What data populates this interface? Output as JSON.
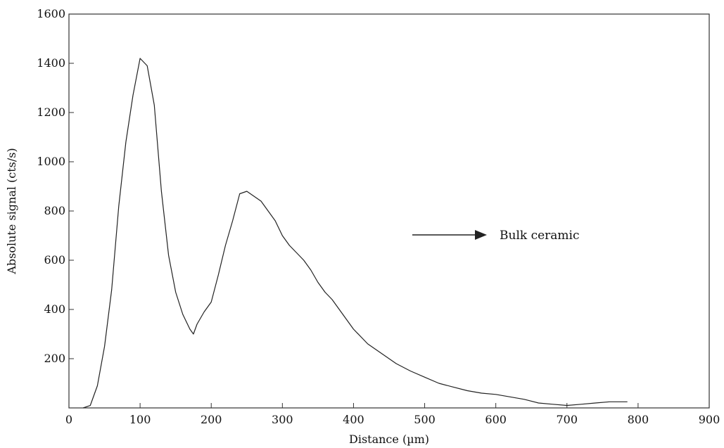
{
  "chart_data": {
    "type": "line",
    "title": "",
    "xlabel": "Distance (µm)",
    "ylabel": "Absolute signal (cts/s)",
    "xlim": [
      0,
      900
    ],
    "ylim": [
      0,
      1600
    ],
    "xticks": [
      "0",
      "100",
      "200",
      "300",
      "400",
      "500",
      "600",
      "700",
      "800",
      "900"
    ],
    "yticks": [
      "200",
      "400",
      "600",
      "800",
      "1000",
      "1200",
      "1400",
      "1600"
    ],
    "grid": false,
    "legend": "none",
    "line_color": "#222222",
    "series": [
      {
        "x": [
          20,
          30,
          40,
          50,
          60,
          70,
          80,
          90,
          100,
          110,
          120,
          130,
          140,
          150,
          160,
          170,
          175,
          180,
          190,
          200,
          210,
          220,
          230,
          240,
          250,
          260,
          270,
          280,
          290,
          300,
          310,
          320,
          330,
          340,
          350,
          360,
          370,
          380,
          390,
          400,
          420,
          440,
          460,
          480,
          500,
          520,
          540,
          560,
          580,
          600,
          620,
          640,
          660,
          680,
          700,
          720,
          740,
          760,
          785
        ],
        "y": [
          0,
          10,
          90,
          250,
          480,
          820,
          1080,
          1270,
          1420,
          1390,
          1230,
          880,
          620,
          470,
          380,
          320,
          300,
          340,
          390,
          430,
          540,
          660,
          760,
          870,
          880,
          860,
          840,
          800,
          760,
          700,
          660,
          630,
          600,
          560,
          510,
          470,
          440,
          400,
          360,
          320,
          260,
          220,
          180,
          150,
          125,
          100,
          85,
          70,
          60,
          55,
          45,
          35,
          20,
          15,
          10,
          15,
          20,
          25,
          25
        ]
      }
    ],
    "annotations": [
      {
        "text": "Bulk ceramic",
        "type": "arrow-right"
      }
    ]
  }
}
